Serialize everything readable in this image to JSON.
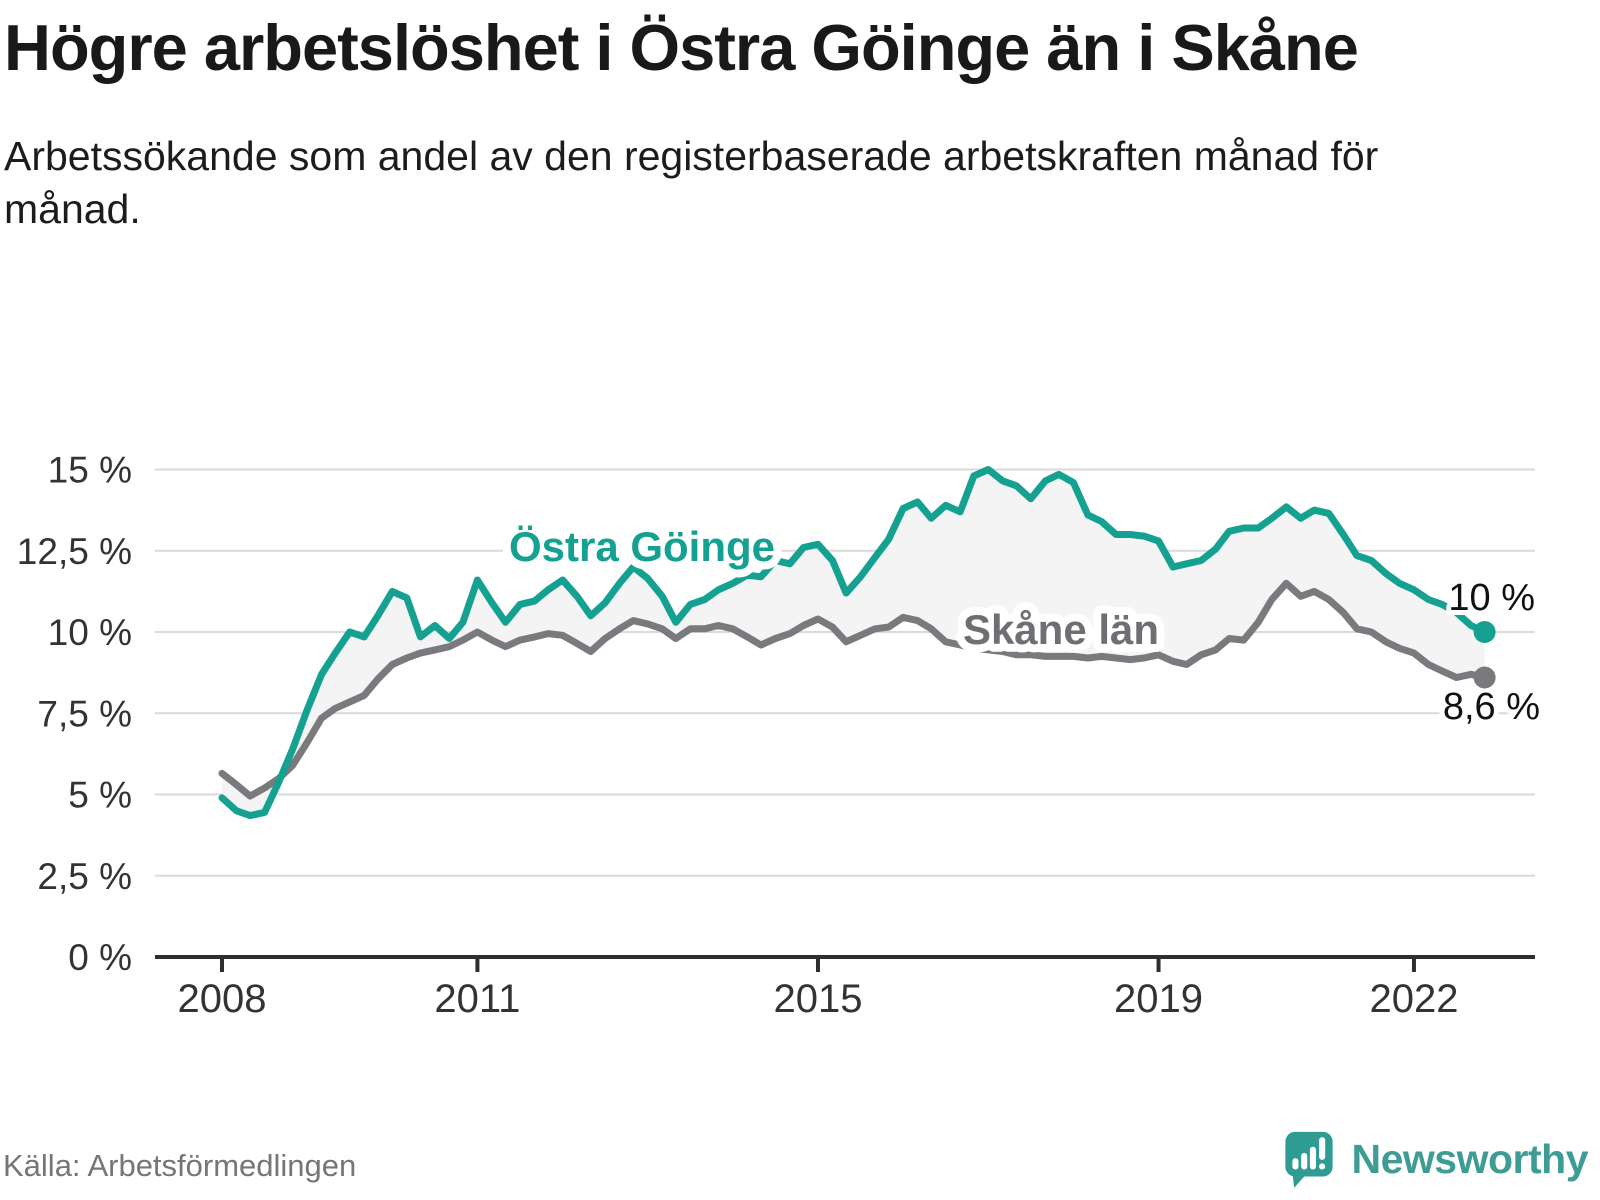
{
  "colors": {
    "accent_teal": "#15a191",
    "series_gray": "#7a7a7e",
    "label_gray": "#6e6e73",
    "grid": "#dadada",
    "axis": "#2e2e2e",
    "fill_between": "#f4f4f4",
    "tick_text": "#333333",
    "end_label_text": "#111111",
    "source_text": "#75757a",
    "logo_teal": "#2e9c92"
  },
  "footer": {
    "brand": "Newsworthy",
    "logo_icon": "speech-bubble-bar-chart-exclamation"
  },
  "chart_data": {
    "type": "line",
    "title": "Högre arbetslöshet i Östra Göinge än i Skåne",
    "subtitle": "Arbetssökande som andel av den registerbaserade arbetskraften månad för månad.",
    "source": "Källa: Arbetsförmedlingen",
    "unit": "%",
    "grid": "horizontal",
    "legend": "inline-labels",
    "ylim": [
      0,
      15
    ],
    "xlim": [
      2007.8,
      2023.4
    ],
    "y_ticks": [
      {
        "value": 15,
        "label": "15 %"
      },
      {
        "value": 12.5,
        "label": "12,5 %"
      },
      {
        "value": 10,
        "label": "10 %"
      },
      {
        "value": 7.5,
        "label": "7,5 %"
      },
      {
        "value": 5,
        "label": "5 %"
      },
      {
        "value": 2.5,
        "label": "2,5 %"
      },
      {
        "value": 0,
        "label": "0 %"
      }
    ],
    "x_ticks": [
      {
        "value": 2008,
        "label": "2008"
      },
      {
        "value": 2011,
        "label": "2011"
      },
      {
        "value": 2015,
        "label": "2015"
      },
      {
        "value": 2019,
        "label": "2019"
      },
      {
        "value": 2022,
        "label": "2022"
      }
    ],
    "x": [
      2008,
      2008.17,
      2008.33,
      2008.5,
      2008.67,
      2008.83,
      2009,
      2009.17,
      2009.33,
      2009.5,
      2009.67,
      2009.83,
      2010,
      2010.17,
      2010.33,
      2010.5,
      2010.67,
      2010.83,
      2011,
      2011.17,
      2011.33,
      2011.5,
      2011.67,
      2011.83,
      2012,
      2012.17,
      2012.33,
      2012.5,
      2012.67,
      2012.83,
      2013,
      2013.17,
      2013.33,
      2013.5,
      2013.67,
      2013.83,
      2014,
      2014.17,
      2014.33,
      2014.5,
      2014.67,
      2014.83,
      2015,
      2015.17,
      2015.33,
      2015.5,
      2015.67,
      2015.83,
      2016,
      2016.17,
      2016.33,
      2016.5,
      2016.67,
      2016.83,
      2017,
      2017.17,
      2017.33,
      2017.5,
      2017.67,
      2017.83,
      2018,
      2018.17,
      2018.33,
      2018.5,
      2018.67,
      2018.83,
      2019,
      2019.17,
      2019.33,
      2019.5,
      2019.67,
      2019.83,
      2020,
      2020.17,
      2020.33,
      2020.5,
      2020.67,
      2020.83,
      2021,
      2021.17,
      2021.33,
      2021.5,
      2021.67,
      2021.83,
      2022,
      2022.17,
      2022.33,
      2022.5,
      2022.67,
      2022.83
    ],
    "series": [
      {
        "name": "Östra Göinge",
        "color_key": "accent_teal",
        "end_label": "10 %",
        "end_value": 10.0,
        "values": [
          4.9,
          4.5,
          4.35,
          4.45,
          5.4,
          6.4,
          7.6,
          8.7,
          9.35,
          10.0,
          9.85,
          10.5,
          11.25,
          11.05,
          9.85,
          10.2,
          9.8,
          10.3,
          11.6,
          10.9,
          10.3,
          10.85,
          10.95,
          11.3,
          11.6,
          11.1,
          10.5,
          10.9,
          11.5,
          12.0,
          11.65,
          11.1,
          10.3,
          10.85,
          11.0,
          11.3,
          11.5,
          11.75,
          11.7,
          12.2,
          12.1,
          12.6,
          12.7,
          12.2,
          11.2,
          11.7,
          12.3,
          12.85,
          13.8,
          14.0,
          13.5,
          13.9,
          13.7,
          14.8,
          15.0,
          14.65,
          14.5,
          14.1,
          14.65,
          14.85,
          14.6,
          13.6,
          13.4,
          13.0,
          13.0,
          12.95,
          12.8,
          12.0,
          12.1,
          12.2,
          12.55,
          13.1,
          13.2,
          13.2,
          13.5,
          13.85,
          13.5,
          13.75,
          13.65,
          13.0,
          12.35,
          12.2,
          11.8,
          11.5,
          11.3,
          11.0,
          10.85,
          10.6,
          10.2,
          10.0
        ]
      },
      {
        "name": "Skåne län",
        "color_key": "series_gray",
        "end_label": "8,6 %",
        "end_value": 8.6,
        "values": [
          5.65,
          5.3,
          4.95,
          5.2,
          5.5,
          5.9,
          6.6,
          7.35,
          7.65,
          7.85,
          8.05,
          8.55,
          9.0,
          9.2,
          9.35,
          9.45,
          9.55,
          9.75,
          10.0,
          9.75,
          9.55,
          9.75,
          9.85,
          9.95,
          9.9,
          9.65,
          9.4,
          9.8,
          10.1,
          10.35,
          10.25,
          10.1,
          9.8,
          10.1,
          10.1,
          10.2,
          10.1,
          9.85,
          9.6,
          9.8,
          9.95,
          10.2,
          10.4,
          10.15,
          9.7,
          9.9,
          10.1,
          10.15,
          10.45,
          10.35,
          10.1,
          9.7,
          9.6,
          9.5,
          9.45,
          9.4,
          9.3,
          9.3,
          9.25,
          9.25,
          9.25,
          9.2,
          9.25,
          9.2,
          9.15,
          9.2,
          9.3,
          9.1,
          9.0,
          9.3,
          9.45,
          9.8,
          9.75,
          10.3,
          11.0,
          11.5,
          11.1,
          11.25,
          11.0,
          10.6,
          10.1,
          10.0,
          9.7,
          9.5,
          9.35,
          9.0,
          8.8,
          8.6,
          8.7,
          8.6
        ]
      }
    ]
  }
}
